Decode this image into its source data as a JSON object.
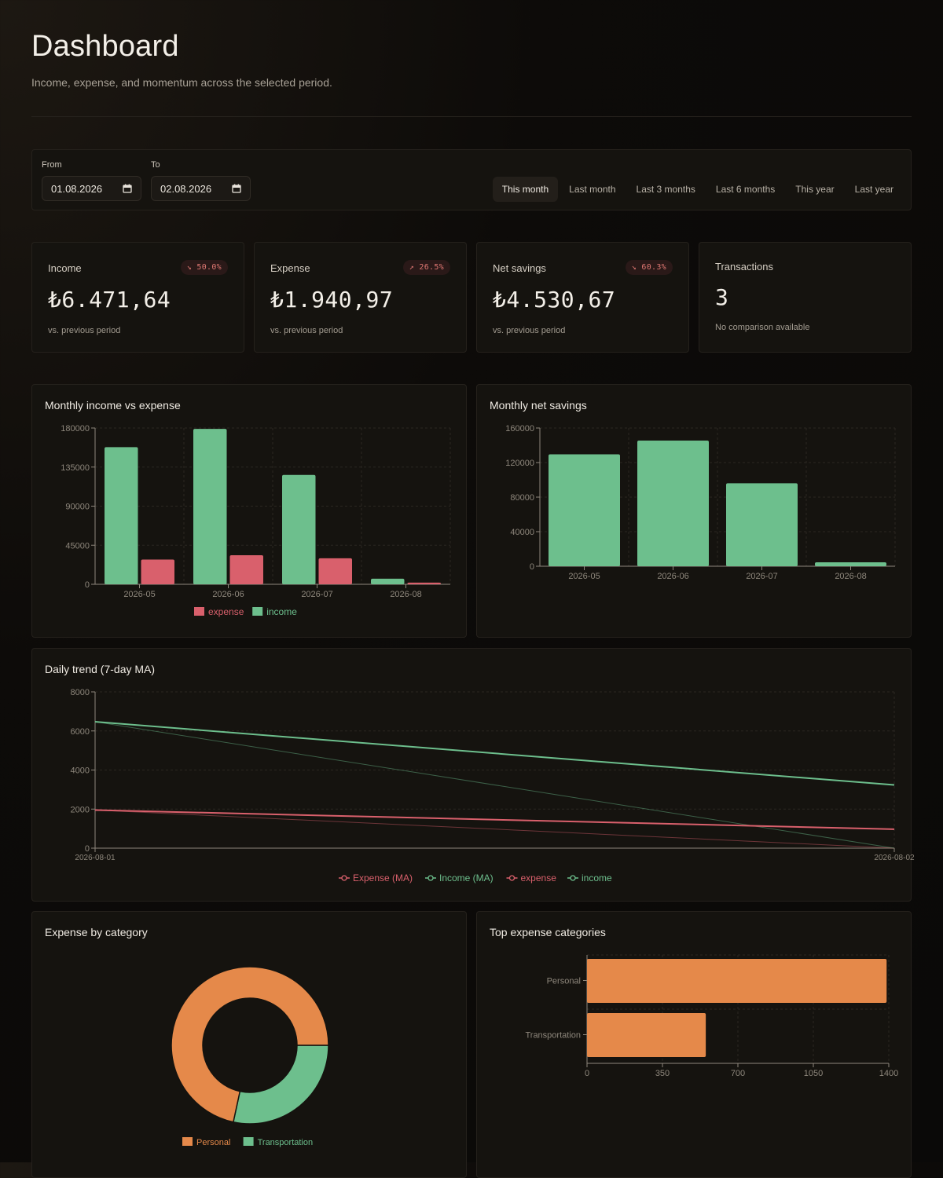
{
  "header": {
    "title": "Dashboard",
    "subtitle": "Income, expense, and momentum across the selected period."
  },
  "filters": {
    "from_label": "From",
    "from_value": "01.08.2026",
    "to_label": "To",
    "to_value": "02.08.2026",
    "presets": [
      "This month",
      "Last month",
      "Last 3 months",
      "Last 6 months",
      "This year",
      "Last year"
    ],
    "active_preset": "This month"
  },
  "kpis": [
    {
      "label": "Income",
      "badge": "↘ 50.0%",
      "value": "₺6.471,64",
      "note": "vs. previous period"
    },
    {
      "label": "Expense",
      "badge": "↗ 26.5%",
      "value": "₺1.940,97",
      "note": "vs. previous period"
    },
    {
      "label": "Net savings",
      "badge": "↘ 60.3%",
      "value": "₺4.530,67",
      "note": "vs. previous period"
    },
    {
      "label": "Transactions",
      "badge": "",
      "value": "3",
      "note": "No comparison available"
    }
  ],
  "colors": {
    "income": "#6dbf8d",
    "expense": "#d9606c",
    "accent_orange": "#e5894a",
    "grid": "#2b2722",
    "axis": "#8e877c"
  },
  "charts": {
    "income_vs_expense_title": "Monthly income vs expense",
    "net_savings_title": "Monthly net savings",
    "daily_trend_title": "Daily trend (7-day MA)",
    "expense_by_category_title": "Expense by category",
    "top_categories_title": "Top expense categories"
  },
  "chart_data": [
    {
      "id": "income_vs_expense",
      "type": "bar",
      "title": "Monthly income vs expense",
      "categories": [
        "2026-05",
        "2026-06",
        "2026-07",
        "2026-08"
      ],
      "series": [
        {
          "name": "income",
          "values": [
            158000,
            179000,
            126000,
            6500
          ]
        },
        {
          "name": "expense",
          "values": [
            28500,
            33500,
            30000,
            1950
          ]
        }
      ],
      "ylim": [
        0,
        180000
      ],
      "yticks": [
        0,
        45000,
        90000,
        135000,
        180000
      ],
      "legend": [
        "expense",
        "income"
      ],
      "legend_position": "bottom",
      "grid": true
    },
    {
      "id": "net_savings",
      "type": "bar",
      "title": "Monthly net savings",
      "categories": [
        "2026-05",
        "2026-06",
        "2026-07",
        "2026-08"
      ],
      "values": [
        129500,
        145500,
        96000,
        4500
      ],
      "ylim": [
        0,
        160000
      ],
      "yticks": [
        0,
        40000,
        80000,
        120000,
        160000
      ],
      "grid": true
    },
    {
      "id": "daily_trend",
      "type": "line",
      "title": "Daily trend (7-day MA)",
      "x": [
        "2026-08-01",
        "2026-08-02"
      ],
      "series": [
        {
          "name": "Expense (MA)",
          "values": [
            1950,
            970
          ]
        },
        {
          "name": "Income (MA)",
          "values": [
            6470,
            3235
          ]
        },
        {
          "name": "expense",
          "values": [
            1950,
            0
          ]
        },
        {
          "name": "income",
          "values": [
            6470,
            0
          ]
        }
      ],
      "ylim": [
        0,
        8000
      ],
      "yticks": [
        0,
        2000,
        4000,
        6000,
        8000
      ],
      "legend_position": "bottom",
      "grid": true
    },
    {
      "id": "expense_by_category",
      "type": "pie",
      "title": "Expense by category",
      "labels": [
        "Personal",
        "Transportation"
      ],
      "values": [
        1390,
        551
      ],
      "legend_position": "bottom"
    },
    {
      "id": "top_expense_categories",
      "type": "bar",
      "orientation": "horizontal",
      "title": "Top expense categories",
      "categories": [
        "Personal",
        "Transportation"
      ],
      "values": [
        1390,
        551
      ],
      "xlim": [
        0,
        1400
      ],
      "xticks": [
        0,
        350,
        700,
        1050,
        1400
      ],
      "grid": true
    }
  ]
}
